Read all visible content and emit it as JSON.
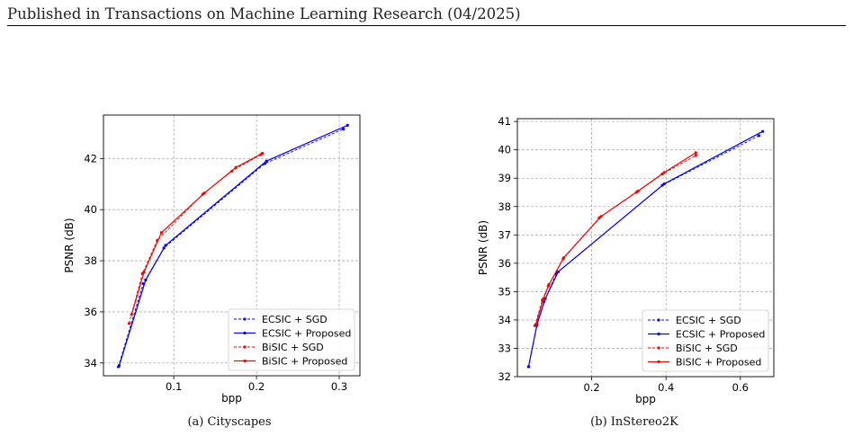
{
  "header": {
    "text": "Published in Transactions on Machine Learning Research (04/2025)"
  },
  "captions": [
    "(a) Cityscapes",
    "(b) InStereo2K"
  ],
  "chart_data": [
    {
      "type": "line",
      "xlabel": "bpp",
      "ylabel": "PSNR (dB)",
      "xlim": [
        0.015,
        0.325
      ],
      "ylim": [
        33.5,
        43.7
      ],
      "xticks": [
        0.1,
        0.2,
        0.3
      ],
      "xtick_labels": [
        "0.1",
        "0.2",
        "0.3"
      ],
      "yticks": [
        34,
        36,
        38,
        40,
        42
      ],
      "ytick_labels": [
        "34",
        "36",
        "38",
        "40",
        "42"
      ],
      "grid": true,
      "legend_position": "bottom-right",
      "series": [
        {
          "name": "ECSIC + SGD",
          "color": "#0000ff",
          "dashed": true,
          "x": [
            0.033,
            0.063,
            0.088,
            0.21,
            0.305
          ],
          "y": [
            33.85,
            37.1,
            38.5,
            41.8,
            43.15
          ]
        },
        {
          "name": "ECSIC + Proposed",
          "color": "#0000ff",
          "dashed": false,
          "x": [
            0.034,
            0.066,
            0.09,
            0.212,
            0.31
          ],
          "y": [
            33.9,
            37.25,
            38.6,
            41.9,
            43.3
          ]
        },
        {
          "name": "BiSIC + SGD",
          "color": "#ff0000",
          "dashed": true,
          "x": [
            0.046,
            0.062,
            0.08,
            0.135,
            0.17,
            0.205
          ],
          "y": [
            35.55,
            37.5,
            38.8,
            40.6,
            41.5,
            42.15
          ]
        },
        {
          "name": "BiSIC + Proposed",
          "color": "#ff0000",
          "dashed": false,
          "x": [
            0.049,
            0.064,
            0.085,
            0.137,
            0.175,
            0.207
          ],
          "y": [
            35.9,
            37.55,
            39.1,
            40.65,
            41.65,
            42.2
          ]
        }
      ]
    },
    {
      "type": "line",
      "xlabel": "bpp",
      "ylabel": "PSNR (dB)",
      "xlim": [
        0.0,
        0.69
      ],
      "ylim": [
        32.0,
        41.1
      ],
      "xticks": [
        0.2,
        0.4,
        0.6
      ],
      "xtick_labels": [
        "0.2",
        "0.4",
        "0.6"
      ],
      "yticks": [
        32,
        33,
        34,
        35,
        36,
        37,
        38,
        39,
        40,
        41
      ],
      "ytick_labels": [
        "32",
        "33",
        "34",
        "35",
        "36",
        "37",
        "38",
        "39",
        "40",
        "41"
      ],
      "grid": true,
      "legend_position": "bottom-right",
      "series": [
        {
          "name": "ECSIC + SGD",
          "color": "#0000ff",
          "dashed": true,
          "x": [
            0.03,
            0.052,
            0.072,
            0.105,
            0.39,
            0.65
          ],
          "y": [
            32.35,
            33.8,
            34.65,
            35.65,
            38.75,
            40.5
          ]
        },
        {
          "name": "ECSIC + Proposed",
          "color": "#0000ff",
          "dashed": false,
          "x": [
            0.03,
            0.053,
            0.075,
            0.11,
            0.395,
            0.66
          ],
          "y": [
            32.35,
            33.85,
            34.75,
            35.7,
            38.8,
            40.65
          ]
        },
        {
          "name": "BiSIC + SGD",
          "color": "#ff0000",
          "dashed": true,
          "x": [
            0.047,
            0.067,
            0.083,
            0.123,
            0.22,
            0.32,
            0.39,
            0.48
          ],
          "y": [
            33.8,
            34.7,
            35.2,
            36.15,
            37.6,
            38.5,
            39.15,
            39.8
          ]
        },
        {
          "name": "BiSIC + Proposed",
          "color": "#ff0000",
          "dashed": false,
          "x": [
            0.05,
            0.07,
            0.085,
            0.125,
            0.225,
            0.325,
            0.395,
            0.48
          ],
          "y": [
            33.85,
            34.75,
            35.25,
            36.2,
            37.65,
            38.55,
            39.2,
            39.9
          ]
        }
      ]
    }
  ]
}
